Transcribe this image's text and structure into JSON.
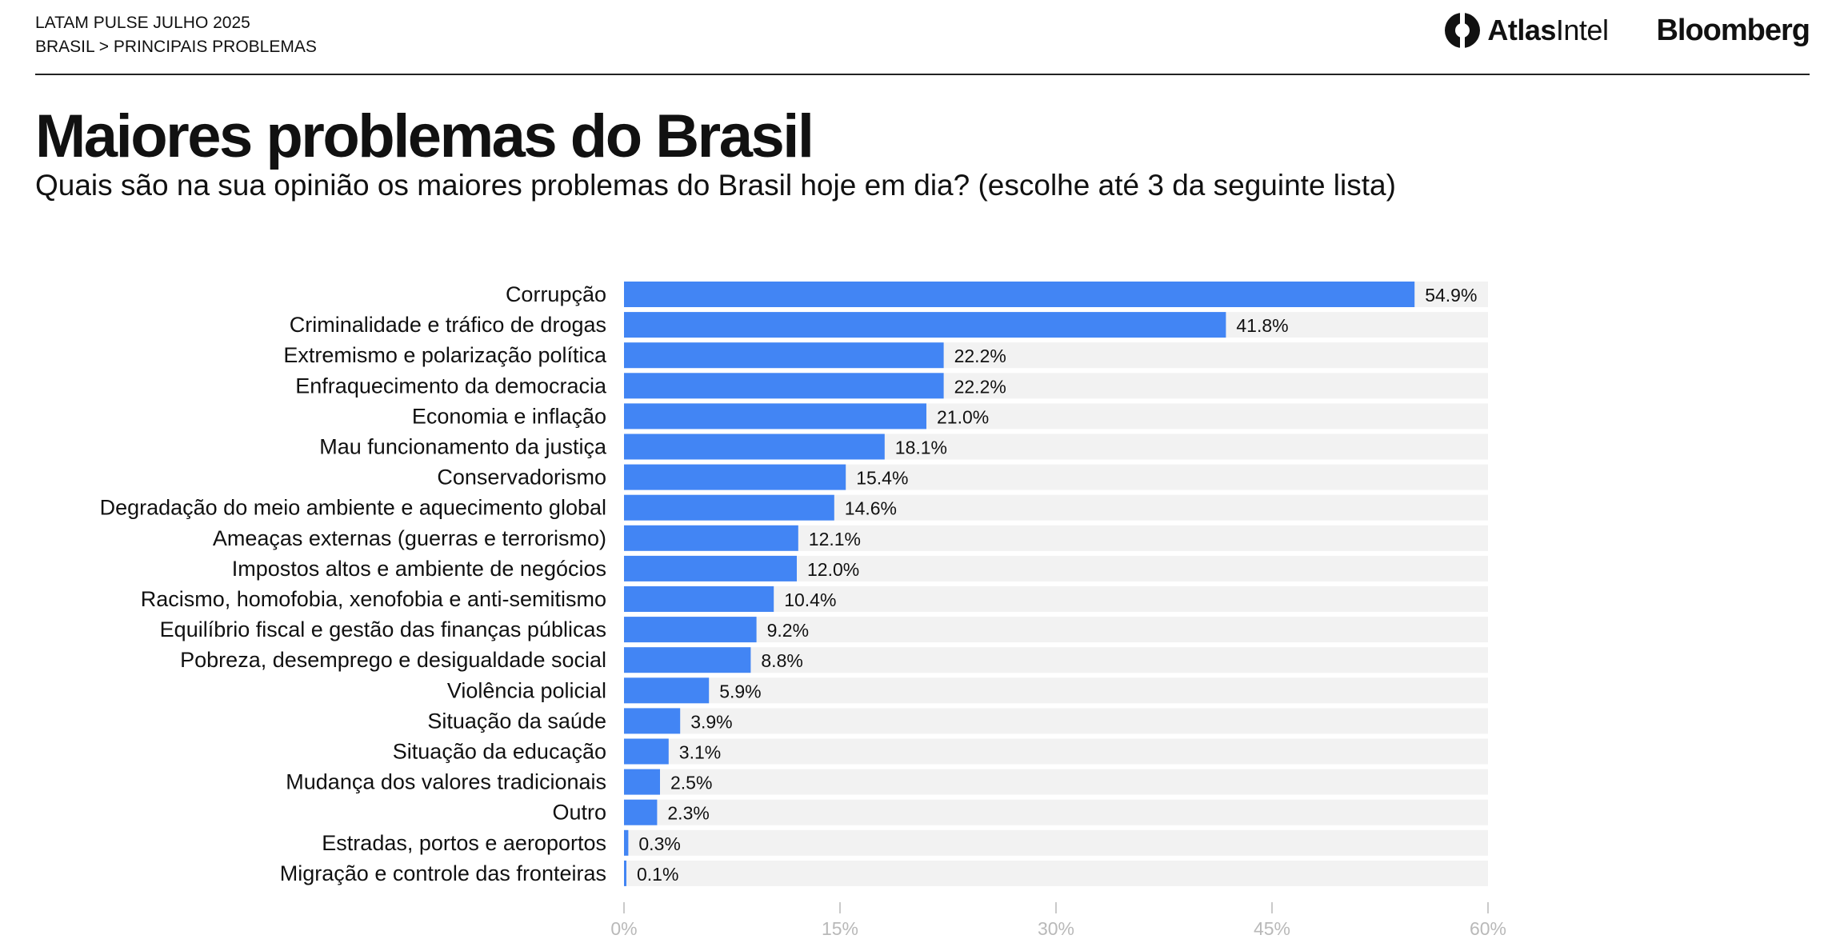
{
  "header": {
    "survey": "LATAM PULSE JULHO 2025",
    "breadcrumb": "BRASIL > PRINCIPAIS PROBLEMAS",
    "brand_atlas_a": "Atlas",
    "brand_atlas_b": "Intel",
    "brand_bloomberg": "Bloomberg"
  },
  "colors": {
    "bar": "#4285f4",
    "track": "#f2f2f2",
    "tick": "#b9b9b9"
  },
  "chart_data": {
    "type": "bar",
    "orientation": "horizontal",
    "title": "Maiores problemas do Brasil",
    "subtitle": "Quais são na sua opinião os maiores problemas do Brasil hoje em dia? (escolhe até 3 da seguinte lista)",
    "categories": [
      "Corrupção",
      "Criminalidade e tráfico de drogas",
      "Extremismo e polarização política",
      "Enfraquecimento da democracia",
      "Economia e inflação",
      "Mau funcionamento da justiça",
      "Conservadorismo",
      "Degradação do meio ambiente e aquecimento global",
      "Ameaças externas (guerras e terrorismo)",
      "Impostos altos e ambiente de negócios",
      "Racismo, homofobia, xenofobia e anti-semitismo",
      "Equilíbrio fiscal e gestão das finanças públicas",
      "Pobreza, desemprego e desigualdade social",
      "Violência policial",
      "Situação da saúde",
      "Situação da educação",
      "Mudança dos valores tradicionais",
      "Outro",
      "Estradas, portos e aeroportos",
      "Migração e controle das fronteiras"
    ],
    "values": [
      54.9,
      41.8,
      22.2,
      22.2,
      21.0,
      18.1,
      15.4,
      14.6,
      12.1,
      12.0,
      10.4,
      9.2,
      8.8,
      5.9,
      3.9,
      3.1,
      2.5,
      2.3,
      0.3,
      0.1
    ],
    "value_labels": [
      "54.9%",
      "41.8%",
      "22.2%",
      "22.2%",
      "21.0%",
      "18.1%",
      "15.4%",
      "14.6%",
      "12.1%",
      "12.0%",
      "10.4%",
      "9.2%",
      "8.8%",
      "5.9%",
      "3.9%",
      "3.1%",
      "2.5%",
      "2.3%",
      "0.3%",
      "0.1%"
    ],
    "xlim": [
      0,
      60
    ],
    "xticks": [
      0,
      15,
      30,
      45,
      60
    ],
    "xtick_labels": [
      "0%",
      "15%",
      "30%",
      "45%",
      "60%"
    ],
    "xlabel": "",
    "ylabel": "",
    "grid": false
  }
}
